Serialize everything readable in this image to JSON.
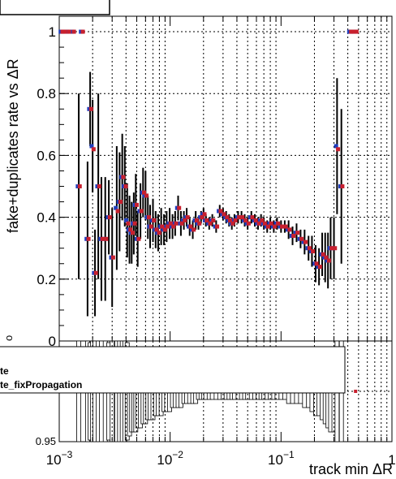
{
  "chart_data": [
    {
      "type": "scatter",
      "ylabel": "fake+duplicates rate vs ΔR",
      "x_scale": "log",
      "xlim": [
        0.001,
        1
      ],
      "ylim": [
        0,
        1.05
      ],
      "y_ticks": [
        "0",
        "0.2",
        "0.4",
        "0.6",
        "0.8",
        "1"
      ],
      "grid": true,
      "series": [
        {
          "color": "#1f3fbf",
          "x": [
            0.00105,
            0.0011,
            0.0012,
            0.00133,
            0.0015,
            0.0016,
            0.0018,
            0.0019,
            0.002,
            0.0021,
            0.00225,
            0.0024,
            0.0026,
            0.0028,
            0.003,
            0.0033,
            0.0035,
            0.0037,
            0.0039,
            0.0041,
            0.0043,
            0.0045,
            0.0047,
            0.0049,
            0.0051,
            0.0054,
            0.0057,
            0.006,
            0.0063,
            0.0066,
            0.007,
            0.0074,
            0.0078,
            0.0083,
            0.0088,
            0.0093,
            0.0099,
            0.0105,
            0.0111,
            0.0118,
            0.0125,
            0.0133,
            0.0141,
            0.015,
            0.016,
            0.017,
            0.018,
            0.019,
            0.02,
            0.021,
            0.0225,
            0.024,
            0.026,
            0.028,
            0.03,
            0.032,
            0.034,
            0.036,
            0.038,
            0.041,
            0.044,
            0.047,
            0.05,
            0.054,
            0.058,
            0.062,
            0.066,
            0.07,
            0.075,
            0.08,
            0.086,
            0.092,
            0.1,
            0.108,
            0.117,
            0.127,
            0.138,
            0.15,
            0.163,
            0.177,
            0.19,
            0.205,
            0.22,
            0.235,
            0.25,
            0.265,
            0.28,
            0.3,
            0.32,
            0.35,
            0.42,
            0.44,
            0.47
          ],
          "y": [
            1.0,
            1.0,
            1.0,
            1.0,
            0.5,
            1.0,
            0.33,
            0.75,
            0.63,
            0.22,
            0.5,
            0.33,
            0.33,
            0.4,
            0.27,
            0.43,
            0.45,
            0.53,
            0.5,
            0.39,
            0.36,
            0.35,
            0.38,
            0.44,
            0.33,
            0.42,
            0.48,
            0.47,
            0.4,
            0.37,
            0.39,
            0.36,
            0.35,
            0.37,
            0.36,
            0.37,
            0.38,
            0.37,
            0.38,
            0.43,
            0.38,
            0.39,
            0.4,
            0.37,
            0.36,
            0.39,
            0.38,
            0.4,
            0.41,
            0.39,
            0.38,
            0.39,
            0.37,
            0.42,
            0.41,
            0.4,
            0.39,
            0.38,
            0.39,
            0.4,
            0.4,
            0.39,
            0.38,
            0.4,
            0.39,
            0.38,
            0.39,
            0.38,
            0.37,
            0.38,
            0.37,
            0.38,
            0.37,
            0.37,
            0.36,
            0.34,
            0.35,
            0.33,
            0.32,
            0.3,
            0.29,
            0.25,
            0.24,
            0.28,
            0.27,
            0.26,
            0.3,
            0.3,
            0.63,
            0.5,
            1.0,
            1.0,
            1.0
          ],
          "err": [
            0.0,
            0.0,
            0.0,
            0.0,
            0.3,
            0.0,
            0.25,
            0.12,
            0.15,
            0.14,
            0.3,
            0.2,
            0.2,
            0.12,
            0.16,
            0.2,
            0.16,
            0.14,
            0.13,
            0.12,
            0.11,
            0.1,
            0.1,
            0.1,
            0.09,
            0.09,
            0.08,
            0.08,
            0.07,
            0.07,
            0.07,
            0.06,
            0.06,
            0.06,
            0.05,
            0.05,
            0.05,
            0.04,
            0.04,
            0.04,
            0.04,
            0.03,
            0.03,
            0.03,
            0.03,
            0.03,
            0.02,
            0.02,
            0.02,
            0.02,
            0.02,
            0.02,
            0.02,
            0.02,
            0.02,
            0.02,
            0.02,
            0.02,
            0.02,
            0.02,
            0.02,
            0.02,
            0.02,
            0.02,
            0.02,
            0.02,
            0.02,
            0.02,
            0.02,
            0.02,
            0.02,
            0.02,
            0.02,
            0.02,
            0.03,
            0.03,
            0.03,
            0.03,
            0.04,
            0.04,
            0.05,
            0.06,
            0.06,
            0.07,
            0.08,
            0.09,
            0.1,
            0.1,
            0.22,
            0.25,
            0.0,
            0.0,
            0.0
          ]
        },
        {
          "color": "#c8202e",
          "x": [
            0.00105,
            0.0011,
            0.0012,
            0.00133,
            0.0015,
            0.0016,
            0.0018,
            0.0019,
            0.002,
            0.0021,
            0.00225,
            0.0024,
            0.0026,
            0.0028,
            0.003,
            0.0033,
            0.0035,
            0.0037,
            0.0039,
            0.0041,
            0.0043,
            0.0045,
            0.0047,
            0.0049,
            0.0051,
            0.0054,
            0.0057,
            0.006,
            0.0063,
            0.0066,
            0.007,
            0.0074,
            0.0078,
            0.0083,
            0.0088,
            0.0093,
            0.0099,
            0.0105,
            0.0111,
            0.0118,
            0.0125,
            0.0133,
            0.0141,
            0.015,
            0.016,
            0.017,
            0.018,
            0.019,
            0.02,
            0.021,
            0.0225,
            0.024,
            0.026,
            0.028,
            0.03,
            0.032,
            0.034,
            0.036,
            0.038,
            0.041,
            0.044,
            0.047,
            0.05,
            0.054,
            0.058,
            0.062,
            0.066,
            0.07,
            0.075,
            0.08,
            0.086,
            0.092,
            0.1,
            0.108,
            0.117,
            0.127,
            0.138,
            0.15,
            0.163,
            0.177,
            0.19,
            0.205,
            0.22,
            0.235,
            0.25,
            0.265,
            0.28,
            0.3,
            0.32,
            0.35,
            0.42,
            0.44,
            0.47
          ],
          "y": [
            1.0,
            1.0,
            1.0,
            1.0,
            0.5,
            1.0,
            0.33,
            0.75,
            0.62,
            0.22,
            0.5,
            0.33,
            0.33,
            0.4,
            0.27,
            0.42,
            0.45,
            0.53,
            0.5,
            0.38,
            0.36,
            0.35,
            0.38,
            0.44,
            0.33,
            0.42,
            0.48,
            0.47,
            0.4,
            0.37,
            0.39,
            0.36,
            0.35,
            0.37,
            0.36,
            0.37,
            0.38,
            0.37,
            0.38,
            0.43,
            0.38,
            0.39,
            0.4,
            0.37,
            0.36,
            0.39,
            0.38,
            0.4,
            0.41,
            0.39,
            0.38,
            0.39,
            0.37,
            0.42,
            0.41,
            0.4,
            0.39,
            0.38,
            0.39,
            0.4,
            0.4,
            0.39,
            0.38,
            0.4,
            0.39,
            0.38,
            0.39,
            0.38,
            0.37,
            0.38,
            0.37,
            0.38,
            0.37,
            0.37,
            0.36,
            0.34,
            0.35,
            0.33,
            0.32,
            0.3,
            0.29,
            0.25,
            0.24,
            0.28,
            0.27,
            0.26,
            0.3,
            0.3,
            0.62,
            0.5,
            1.0,
            1.0,
            1.0
          ],
          "err": [
            0.0,
            0.0,
            0.0,
            0.0,
            0.3,
            0.0,
            0.25,
            0.12,
            0.15,
            0.14,
            0.3,
            0.2,
            0.2,
            0.12,
            0.16,
            0.2,
            0.16,
            0.14,
            0.13,
            0.12,
            0.11,
            0.1,
            0.1,
            0.1,
            0.09,
            0.09,
            0.08,
            0.08,
            0.07,
            0.07,
            0.07,
            0.06,
            0.06,
            0.06,
            0.05,
            0.05,
            0.05,
            0.04,
            0.04,
            0.04,
            0.04,
            0.03,
            0.03,
            0.03,
            0.03,
            0.03,
            0.02,
            0.02,
            0.02,
            0.02,
            0.02,
            0.02,
            0.02,
            0.02,
            0.02,
            0.02,
            0.02,
            0.02,
            0.02,
            0.02,
            0.02,
            0.02,
            0.02,
            0.02,
            0.02,
            0.02,
            0.02,
            0.02,
            0.02,
            0.02,
            0.02,
            0.02,
            0.02,
            0.02,
            0.03,
            0.03,
            0.03,
            0.03,
            0.04,
            0.04,
            0.05,
            0.06,
            0.06,
            0.07,
            0.08,
            0.09,
            0.1,
            0.1,
            0.22,
            0.25,
            0.0,
            0.0,
            0.0
          ]
        }
      ]
    },
    {
      "type": "scatter",
      "xlabel": "track min ΔR",
      "x_scale": "log",
      "xlim": [
        0.001,
        1
      ],
      "x_ticks": [
        {
          "base": "10",
          "exp": "−3",
          "value": 0.001
        },
        {
          "base": "10",
          "exp": "−2",
          "value": 0.01
        },
        {
          "base": "10",
          "exp": "−1",
          "value": 0.1
        },
        {
          "base": "1",
          "exp": "",
          "value": 1
        }
      ],
      "ylim": [
        0.95,
        1.05
      ],
      "y_ticks": [
        "0.95"
      ],
      "grid": true,
      "partial_y_label": "o",
      "legend": {
        "placement": "top-left",
        "entries": [
          {
            "label": "te",
            "color": "#1f3fbf"
          },
          {
            "label": "te_fixPropagation",
            "color": "#c8202e"
          }
        ]
      },
      "ratio_x": [
        0.47,
        0.0045
      ],
      "ratio_y": [
        1.0,
        1.0
      ]
    }
  ]
}
